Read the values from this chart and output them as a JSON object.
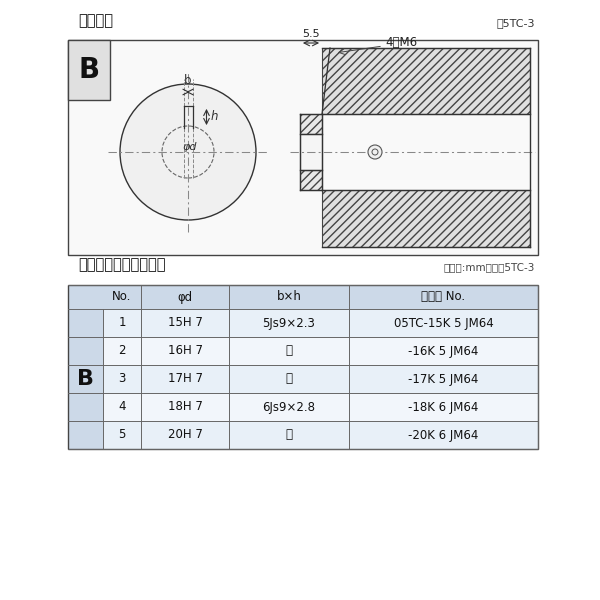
{
  "title_diagram": "軸穴形状",
  "fig_no": "図5TC-3",
  "table_title": "軸穴形状コード一覧表",
  "table_unit": "（単位:mm）　表5TC-3",
  "bg_color": "#ffffff",
  "table_rows": [
    [
      "1",
      "15H 7",
      "5Js9×2.3",
      "05TC-15K 5 JM64"
    ],
    [
      "2",
      "16H 7",
      "〃",
      "-16K 5 JM64"
    ],
    [
      "3",
      "17H 7",
      "〃",
      "-17K 5 JM64"
    ],
    [
      "4",
      "18H 7",
      "6Js9×2.8",
      "-18K 6 JM64"
    ],
    [
      "5",
      "20H 7",
      "〃",
      "-20K 6 JM64"
    ]
  ],
  "col_headers": [
    "No.",
    "φd",
    "b×h",
    "コード No."
  ],
  "B_label": "B",
  "dim_55": "5.5",
  "dim_4M6": "4－M6",
  "dim_b": "b",
  "dim_h": "h",
  "dim_phid": "φd"
}
